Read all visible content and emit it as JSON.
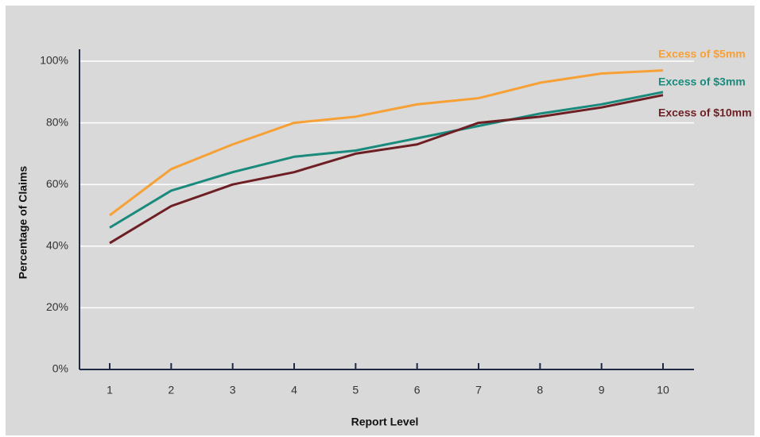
{
  "chart_data": {
    "type": "line",
    "x_label": "Report Level",
    "y_label": "Percentage of Claims",
    "categories": [
      "1",
      "2",
      "3",
      "4",
      "5",
      "6",
      "7",
      "8",
      "9",
      "10"
    ],
    "series": [
      {
        "name": "Excess of $5mm",
        "color": "#f7a035",
        "values": [
          50,
          65,
          73,
          80,
          82,
          86,
          88,
          93,
          96,
          97
        ]
      },
      {
        "name": "Excess of $3mm",
        "color": "#1a8a7c",
        "values": [
          46,
          58,
          64,
          69,
          71,
          75,
          79,
          83,
          86,
          90
        ]
      },
      {
        "name": "Excess of $10mm",
        "color": "#6e1f24",
        "values": [
          41,
          53,
          60,
          64,
          70,
          73,
          80,
          82,
          85,
          89
        ]
      }
    ],
    "ylim": [
      0,
      100
    ],
    "yticks": [
      {
        "value": 0,
        "label": "0%"
      },
      {
        "value": 20,
        "label": "20%"
      },
      {
        "value": 40,
        "label": "40%"
      },
      {
        "value": 60,
        "label": "60%"
      },
      {
        "value": 80,
        "label": "80%"
      },
      {
        "value": 100,
        "label": "100%"
      }
    ],
    "grid": true
  }
}
